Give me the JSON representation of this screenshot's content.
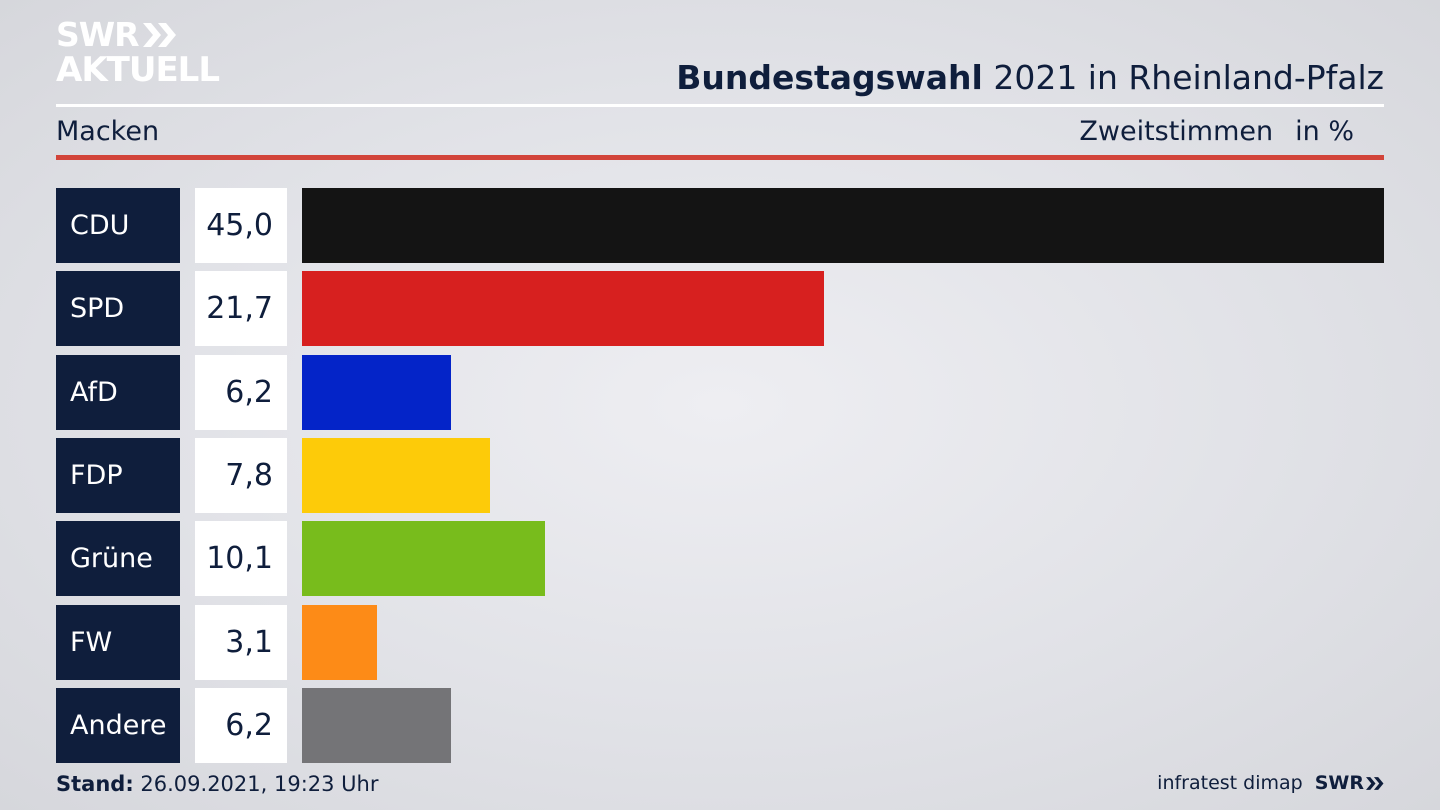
{
  "logo": {
    "line1": "SWR",
    "line2": "AKTUELL"
  },
  "header": {
    "title_bold": "Bundestagswahl",
    "title_rest": " 2021 in Rheinland-Pfalz",
    "region": "Macken",
    "metric": "Zweitstimmen",
    "unit": "in %"
  },
  "chart_data": {
    "type": "bar",
    "orientation": "horizontal",
    "categories": [
      "CDU",
      "SPD",
      "AfD",
      "FDP",
      "Grüne",
      "FW",
      "Andere"
    ],
    "values": [
      45.0,
      21.7,
      6.2,
      7.8,
      10.1,
      3.1,
      6.2
    ],
    "value_labels": [
      "45,0",
      "21,7",
      "6,2",
      "7,8",
      "10,1",
      "3,1",
      "6,2"
    ],
    "colors": [
      "#141414",
      "#d7201f",
      "#0424c8",
      "#fdcb09",
      "#78bc1c",
      "#fd8b17",
      "#747477"
    ],
    "xlim": [
      0,
      45
    ]
  },
  "footer": {
    "stand_label": "Stand:",
    "stand_value": " 26.09.2021, 19:23 Uhr",
    "source": "infratest dimap",
    "brand": "SWR"
  }
}
